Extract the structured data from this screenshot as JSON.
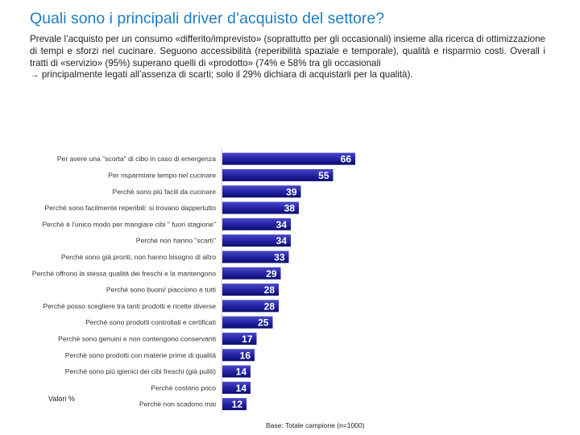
{
  "header": {
    "title": "Quali sono i principali driver d’acquisto del settore?",
    "paragraph": "Prevale l’acquisto per un consumo «differito/imprevisto» (soprattutto per gli occasionali) insieme alla ricerca di ottimizzazione di tempi e sforzi nel cucinare. Seguono accessibilità (reperibilità spaziale e temporale), qualità e risparmio costi. Overall i tratti di «servizio» (95%) superano quelli di «prodotto» (74% e 58% tra gli occasionali",
    "paragraph_line2": "→ principalmente legati all’assenza di scarti; solo il 29% dichiara di acquistarli per la qualità)."
  },
  "footer": {
    "unit_label": "Valori %",
    "base_note": "Base: Totale campione (n=1000)"
  },
  "colors": {
    "bar": "#2424a6",
    "bar_dark": "#0c0c6e",
    "title": "#1f7cc4"
  },
  "chart_data": {
    "type": "bar",
    "orientation": "horizontal",
    "categories": [
      "Per avere una \"scorta\" di cibo in caso di emergenza",
      "Per risparmiare tempo nel cucinare",
      "Perchè sono più facili da cucinare",
      "Perchè sono facilmente reperibili: si trovano dappertutto",
      "Perchè è l'unico modo per mangiare cibi \" fuori stagione\"",
      "Perchè non hanno \"scarti\"",
      "Perchè sono già pronti, non hanno bisogno di altro",
      "Perchè offrono la stessa qualità dei freschi e la mantengono",
      "Perchè sono buoni/ piacciono a tutti",
      "Perchè posso scegliere tra tanti prodotti e ricette diverse",
      "Perchè sono prodotti controllati e certificati",
      "Perchè sono genuini e non contengono conservanti",
      "Perchè sono prodotti con materie prime di qualità",
      "Perchè sono più igienici dei cibi freschi (già puliti)",
      "Perchè costano poco",
      "Perchè non scadono mai"
    ],
    "values": [
      66,
      55,
      39,
      38,
      34,
      34,
      33,
      29,
      28,
      28,
      25,
      17,
      16,
      14,
      14,
      12
    ],
    "xlim": [
      0,
      70
    ],
    "title": "",
    "xlabel": "",
    "ylabel": "",
    "grid": false,
    "data_labels": true
  }
}
